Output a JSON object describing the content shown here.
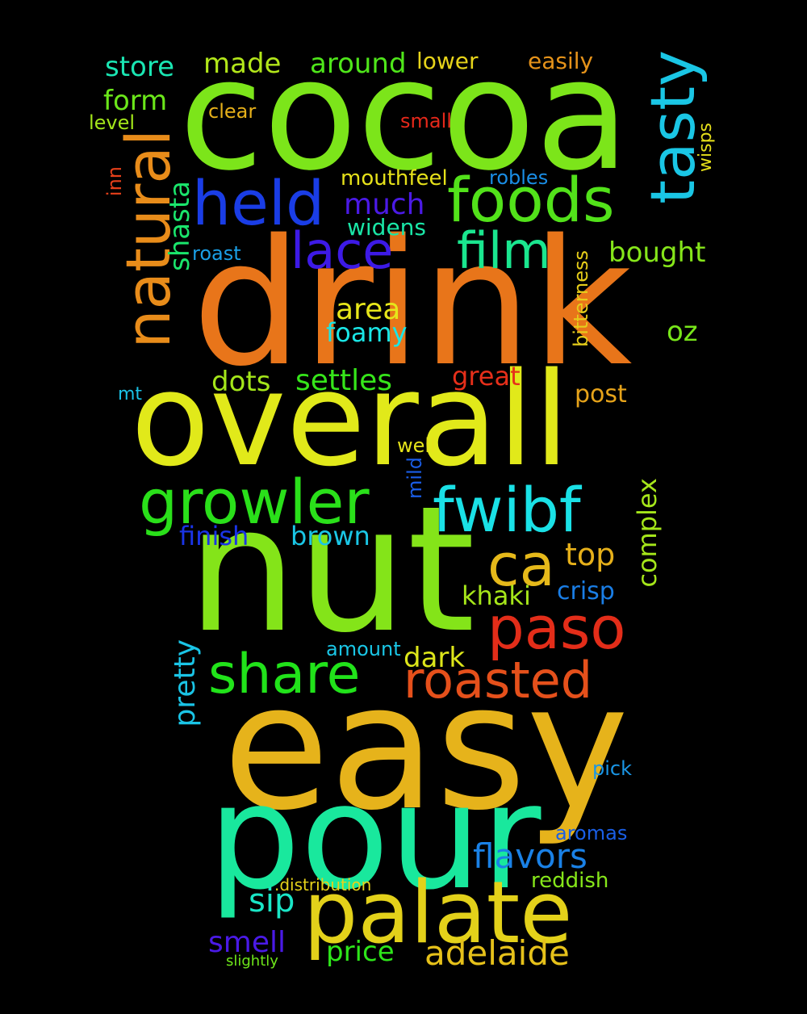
{
  "words": [
    {
      "key": "cocoa",
      "text": "cocoa",
      "color": "#7ce51a"
    },
    {
      "key": "drink",
      "text": "drink",
      "color": "#e8751a"
    },
    {
      "key": "overall",
      "text": "overall",
      "color": "#e1e91a"
    },
    {
      "key": "nut",
      "text": "nut",
      "color": "#84e419"
    },
    {
      "key": "easy",
      "text": "easy",
      "color": "#e6b31b"
    },
    {
      "key": "pour",
      "text": "pour",
      "color": "#19e89d"
    },
    {
      "key": "palate",
      "text": "palate",
      "color": "#e3d11a"
    },
    {
      "key": "natural",
      "text": "natural",
      "color": "#e88c1a"
    },
    {
      "key": "held",
      "text": "held",
      "color": "#1a3de6"
    },
    {
      "key": "foods",
      "text": "foods",
      "color": "#52e21a"
    },
    {
      "key": "tasty",
      "text": "tasty",
      "color": "#1ac6e5"
    },
    {
      "key": "growler",
      "text": "growler",
      "color": "#2ae01a"
    },
    {
      "key": "fwibf",
      "text": "fwibf",
      "color": "#1ae1e6"
    },
    {
      "key": "paso",
      "text": "paso",
      "color": "#e32d19"
    },
    {
      "key": "share",
      "text": "share",
      "color": "#21e31a"
    },
    {
      "key": "roasted",
      "text": "roasted",
      "color": "#e5501b"
    },
    {
      "key": "lace",
      "text": "lace",
      "color": "#3d1ae6"
    },
    {
      "key": "film",
      "text": "film",
      "color": "#1ae68f"
    },
    {
      "key": "ca",
      "text": "ca",
      "color": "#e6b91a"
    },
    {
      "key": "store",
      "text": "store",
      "color": "#1ae6b3"
    },
    {
      "key": "made",
      "text": "made",
      "color": "#b2e61a"
    },
    {
      "key": "around",
      "text": "around",
      "color": "#4fe61a"
    },
    {
      "key": "lower",
      "text": "lower",
      "color": "#e6d31a"
    },
    {
      "key": "easily",
      "text": "easily",
      "color": "#e6931a"
    },
    {
      "key": "form",
      "text": "form",
      "color": "#6be61a"
    },
    {
      "key": "clear",
      "text": "clear",
      "color": "#e6b01a"
    },
    {
      "key": "level",
      "text": "level",
      "color": "#a3e61a"
    },
    {
      "key": "small",
      "text": "small",
      "color": "#e6281a"
    },
    {
      "key": "wisps",
      "text": "wisps",
      "color": "#e6e01a"
    },
    {
      "key": "inn",
      "text": "inn",
      "color": "#e6401a"
    },
    {
      "key": "shasta",
      "text": "shasta",
      "color": "#1ae66c"
    },
    {
      "key": "mouthfeel",
      "text": "mouthfeel",
      "color": "#e6e11a"
    },
    {
      "key": "robles",
      "text": "robles",
      "color": "#1a8ee6"
    },
    {
      "key": "much",
      "text": "much",
      "color": "#4b1ae6"
    },
    {
      "key": "widens",
      "text": "widens",
      "color": "#1ae6a7"
    },
    {
      "key": "roast",
      "text": "roast",
      "color": "#1a9fe6"
    },
    {
      "key": "bought",
      "text": "bought",
      "color": "#86e61a"
    },
    {
      "key": "bitterness",
      "text": "bitterness",
      "color": "#e6cd1a"
    },
    {
      "key": "area",
      "text": "area",
      "color": "#e6e61a"
    },
    {
      "key": "foamy",
      "text": "foamy",
      "color": "#1ae6e6"
    },
    {
      "key": "oz",
      "text": "oz",
      "color": "#78e61a"
    },
    {
      "key": "dots",
      "text": "dots",
      "color": "#a4e61a"
    },
    {
      "key": "settles",
      "text": "settles",
      "color": "#36e61a"
    },
    {
      "key": "great",
      "text": "great",
      "color": "#e62f1a"
    },
    {
      "key": "mt",
      "text": "mt",
      "color": "#1ac2e6"
    },
    {
      "key": "post",
      "text": "post",
      "color": "#e6a31a"
    },
    {
      "key": "well",
      "text": "well",
      "color": "#e6e41a"
    },
    {
      "key": "mild",
      "text": "mild",
      "color": "#1a5de6"
    },
    {
      "key": "finish",
      "text": "finish",
      "color": "#1a34e6"
    },
    {
      "key": "brown",
      "text": "brown",
      "color": "#1ac6e6"
    },
    {
      "key": "complex",
      "text": "complex",
      "color": "#a5e61a"
    },
    {
      "key": "top",
      "text": "top",
      "color": "#e6b01a"
    },
    {
      "key": "khaki",
      "text": "khaki",
      "color": "#a6e61a"
    },
    {
      "key": "crisp",
      "text": "crisp",
      "color": "#1a7ee6"
    },
    {
      "key": "pretty",
      "text": "pretty",
      "color": "#1ac4e6"
    },
    {
      "key": "amount",
      "text": "amount",
      "color": "#1ac6e6"
    },
    {
      "key": "dark",
      "text": "dark",
      "color": "#dde61a"
    },
    {
      "key": "pick",
      "text": "pick",
      "color": "#1a96e6"
    },
    {
      "key": "aromas",
      "text": "aromas",
      "color": "#1a5fe6"
    },
    {
      "key": "flavors",
      "text": "flavors",
      "color": "#1a81e6"
    },
    {
      "key": "distribution",
      "text": ".distribution",
      "color": "#e6d31a"
    },
    {
      "key": "reddish",
      "text": "reddish",
      "color": "#86e61a"
    },
    {
      "key": "sip",
      "text": "sip",
      "color": "#1ae6c7"
    },
    {
      "key": "smell",
      "text": "smell",
      "color": "#4a1ae6"
    },
    {
      "key": "price",
      "text": "price",
      "color": "#2ee61a"
    },
    {
      "key": "adelaide",
      "text": "adelaide",
      "color": "#e6c11a"
    },
    {
      "key": "slightly",
      "text": "slightly",
      "color": "#6ee61a"
    }
  ]
}
